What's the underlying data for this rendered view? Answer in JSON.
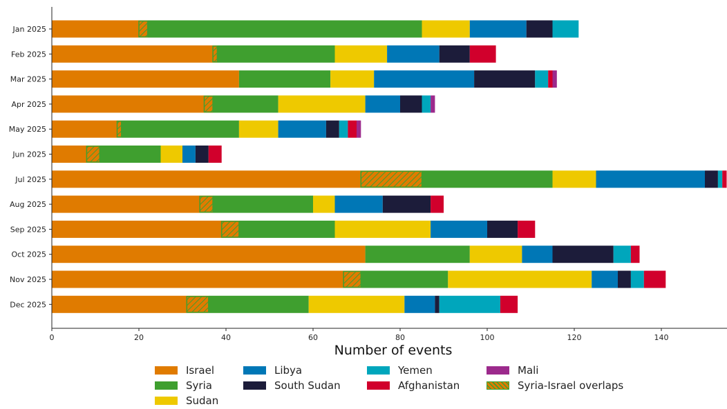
{
  "chart_data": {
    "type": "bar",
    "orientation": "horizontal",
    "stacked": true,
    "xlabel": "Number of events",
    "ylabel": "",
    "xlim": [
      0,
      155
    ],
    "xticks": [
      0,
      20,
      40,
      60,
      80,
      100,
      120,
      140
    ],
    "grid": false,
    "legend_position": "bottom",
    "categories": [
      "Jan 2025",
      "Feb 2025",
      "Mar 2025",
      "Apr 2025",
      "May 2025",
      "Jun 2025",
      "Jul 2025",
      "Aug 2025",
      "Sep 2025",
      "Oct 2025",
      "Nov 2025",
      "Dec 2025"
    ],
    "series": [
      {
        "name": "Israel",
        "color": "#e07b00",
        "values": [
          22,
          38,
          43,
          37,
          16,
          11,
          85,
          37,
          43,
          72,
          71,
          36
        ]
      },
      {
        "name": "Syria",
        "color": "#3f9f2f",
        "values": [
          63,
          27,
          21,
          15,
          27,
          14,
          30,
          23,
          22,
          24,
          20,
          23
        ]
      },
      {
        "name": "Sudan",
        "color": "#eec900",
        "values": [
          11,
          12,
          10,
          20,
          9,
          5,
          10,
          5,
          22,
          12,
          33,
          22
        ]
      },
      {
        "name": "Libya",
        "color": "#0077b6",
        "values": [
          13,
          12,
          23,
          8,
          11,
          3,
          25,
          11,
          13,
          7,
          6,
          7
        ]
      },
      {
        "name": "South Sudan",
        "color": "#1c1c3a",
        "values": [
          6,
          7,
          14,
          5,
          3,
          3,
          3,
          11,
          7,
          14,
          3,
          1
        ]
      },
      {
        "name": "Yemen",
        "color": "#00a6bc",
        "values": [
          6,
          0,
          3,
          2,
          2,
          0,
          1,
          0,
          0,
          4,
          3,
          14
        ]
      },
      {
        "name": "Afghanistan",
        "color": "#d1002c",
        "values": [
          0,
          6,
          1,
          0,
          2,
          3,
          1,
          3,
          4,
          2,
          5,
          4
        ]
      },
      {
        "name": "Mali",
        "color": "#9c2a8c",
        "values": [
          0,
          0,
          1,
          1,
          1,
          0,
          0,
          0,
          0,
          0,
          0,
          0
        ]
      }
    ],
    "overlap": {
      "name": "Syria-Israel overlaps",
      "fill": "#e07b00",
      "hatch_color": "#3f9f2f",
      "values": [
        2,
        1,
        0,
        2,
        1,
        3,
        14,
        3,
        4,
        0,
        4,
        5
      ]
    }
  }
}
